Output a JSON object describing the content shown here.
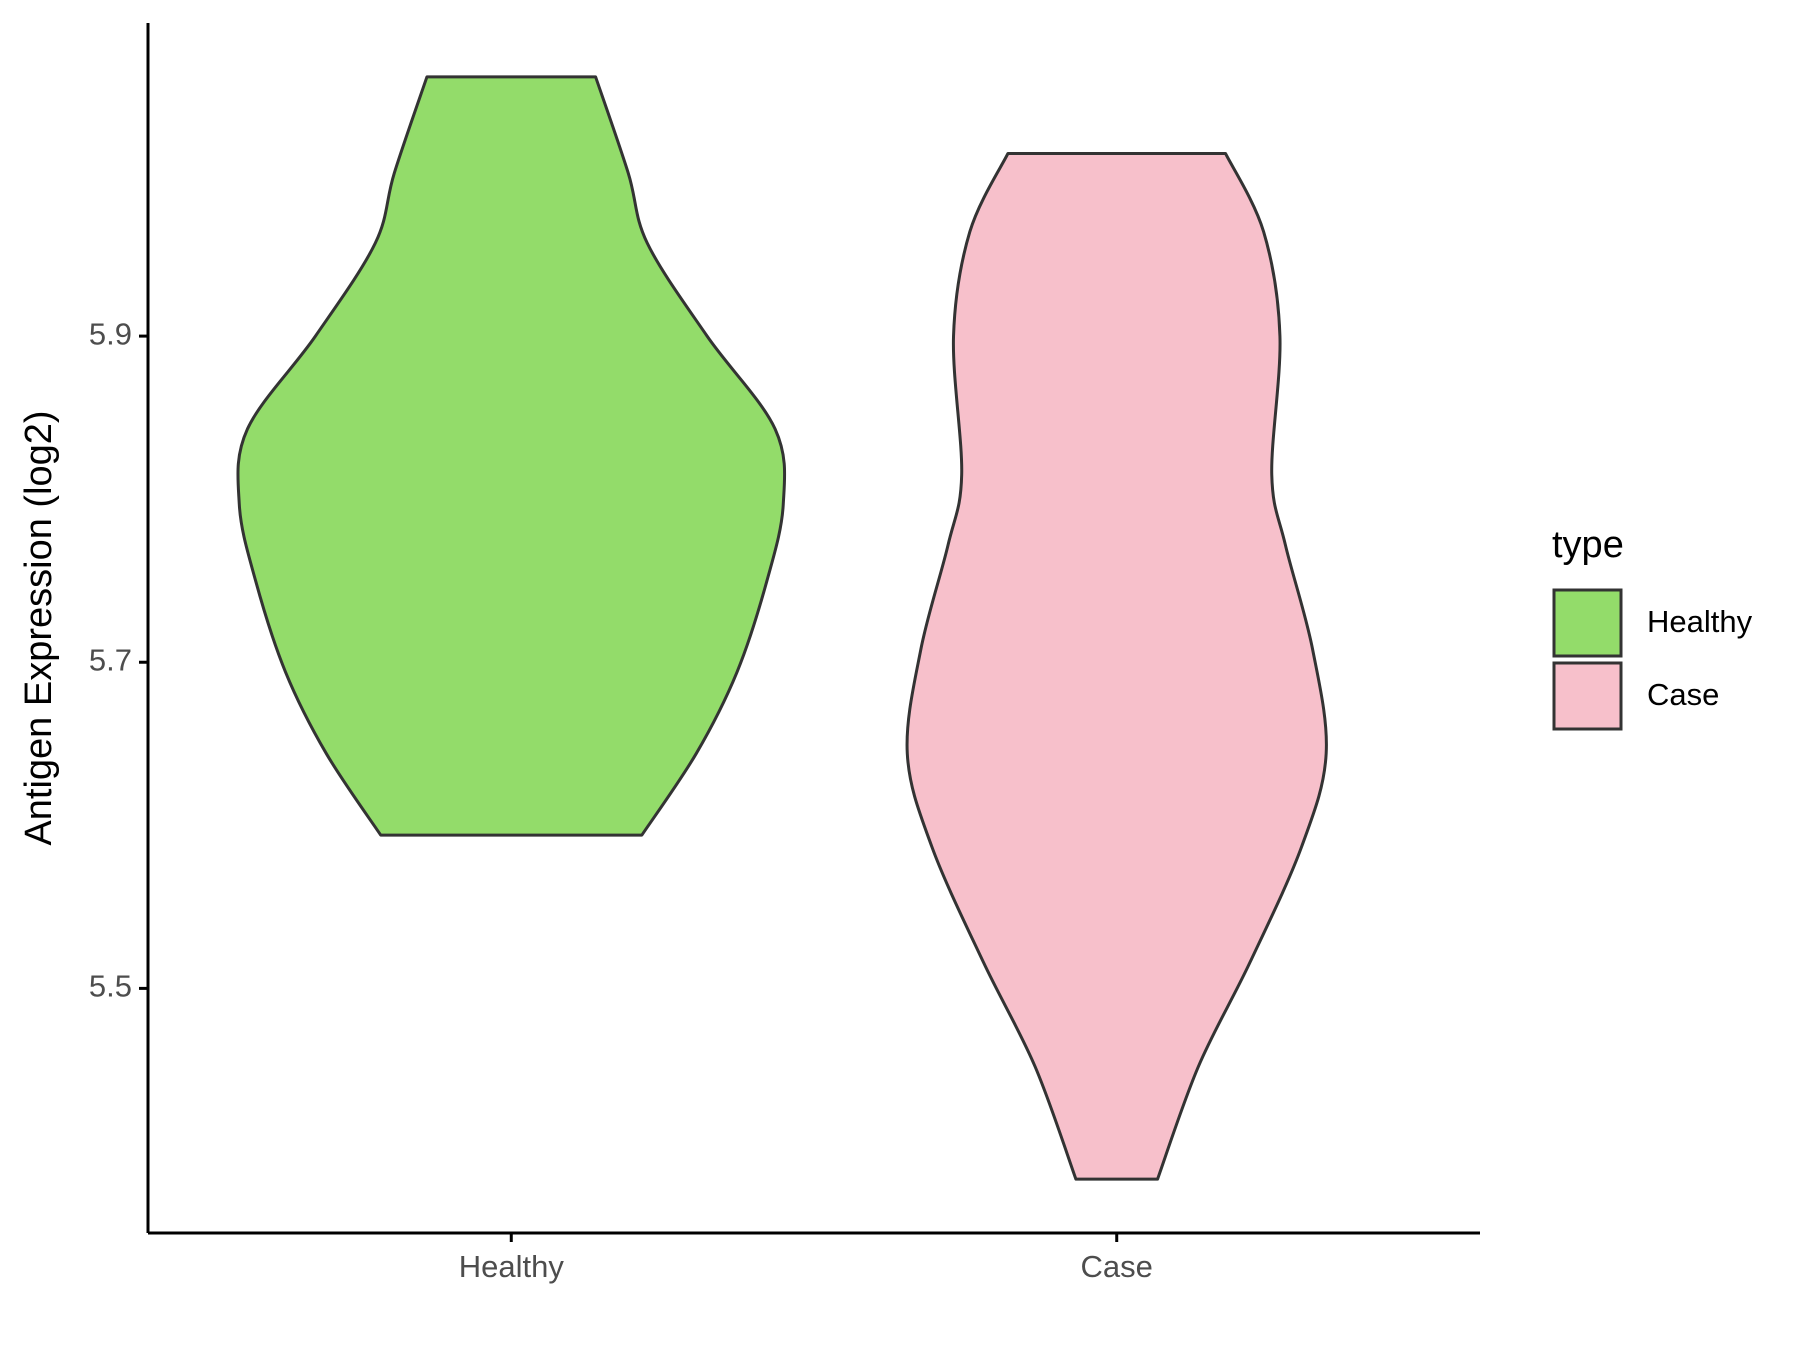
{
  "chart_data": {
    "type": "violin",
    "y_label": "Antigen Expression (log2)",
    "categories": [
      "Healthy",
      "Case"
    ],
    "legend_title": "type",
    "legend_position": "right",
    "ylim": [
      5.35,
      6.092
    ],
    "yticks": [
      5.5,
      5.7,
      5.9
    ],
    "series": [
      {
        "name": "Healthy",
        "color": "#93dc6a",
        "density_y": [
          6.059,
          6.0,
          5.957,
          5.9,
          5.843,
          5.797,
          5.75,
          5.694,
          5.644,
          5.594
        ],
        "density": [
          0.31,
          0.43,
          0.5,
          0.72,
          0.97,
          1.0,
          0.94,
          0.83,
          0.68,
          0.48
        ]
      },
      {
        "name": "Case",
        "color": "#f7c0cb",
        "density_y": [
          6.012,
          5.964,
          5.9,
          5.815,
          5.772,
          5.708,
          5.644,
          5.587,
          5.516,
          5.452,
          5.383
        ],
        "density": [
          0.4,
          0.54,
          0.6,
          0.57,
          0.62,
          0.72,
          0.77,
          0.68,
          0.49,
          0.3,
          0.15
        ]
      }
    ]
  }
}
